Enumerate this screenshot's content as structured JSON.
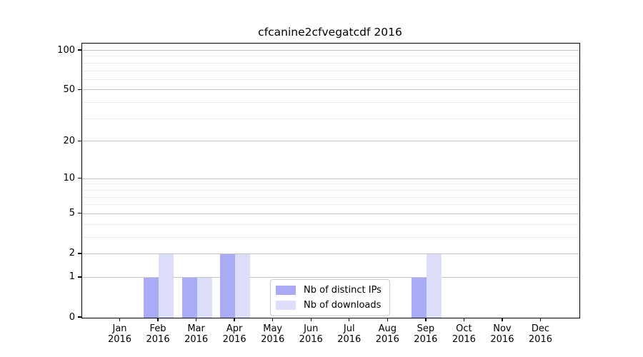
{
  "chart_data": {
    "type": "bar",
    "title": "cfcanine2cfvegatcdf 2016",
    "categories": [
      "Jan 2016",
      "Feb 2016",
      "Mar 2016",
      "Apr 2016",
      "May 2016",
      "Jun 2016",
      "Jul 2016",
      "Aug 2016",
      "Sep 2016",
      "Oct 2016",
      "Nov 2016",
      "Dec 2016"
    ],
    "series": [
      {
        "name": "Nb of distinct IPs",
        "color": "#a9acf5",
        "values": [
          0,
          1,
          1,
          2,
          0,
          0,
          0,
          0,
          1,
          0,
          0,
          0
        ]
      },
      {
        "name": "Nb of downloads",
        "color": "#dcdef9",
        "values": [
          0,
          2,
          1,
          2,
          0,
          0,
          0,
          0,
          2,
          0,
          0,
          0
        ]
      }
    ],
    "y_axis": {
      "scale": "log1p",
      "major_ticks": [
        0,
        1,
        2,
        5,
        10,
        20,
        50,
        100
      ],
      "minor_ticks": [
        3,
        4,
        6,
        7,
        8,
        9,
        30,
        40,
        60,
        70,
        80,
        90
      ],
      "range": [
        0,
        113
      ]
    },
    "x_axis": {
      "year_label": "2016"
    },
    "grid": {
      "major_color": "#c6c6c6",
      "minor_color": "#ececec"
    },
    "legend": {
      "position": "lower-center"
    },
    "colors": {
      "text": "#000000",
      "spine": "#000000"
    }
  }
}
